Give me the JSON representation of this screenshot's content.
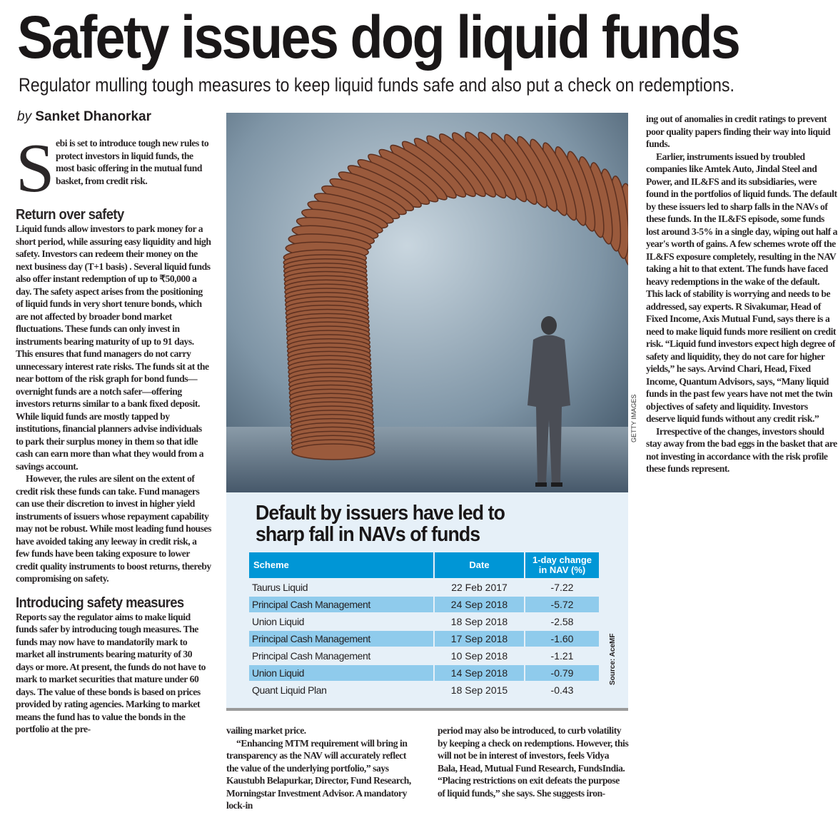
{
  "headline": "Safety issues dog liquid funds",
  "deck": "Regulator mulling tough measures to keep liquid funds safe and also put a check on redemptions.",
  "byline": {
    "prefix": "by",
    "author": "Sanket Dhanorkar"
  },
  "photo_credit": "GETTY IMAGES",
  "article": {
    "dropcap": "S",
    "intro": "ebi is set to introduce tough new rules to protect investors in liquid funds, the most basic offering in the mutual fund basket, from credit risk.",
    "section1_heading": "Return over safety",
    "section1_p1": "Liquid funds allow investors to park money for a short period, while assuring easy liquidity and high safety. Investors can redeem their money on the next business day (T+1 basis) . Several liquid funds also offer instant redemption of up to ₹50,000 a day. The safety aspect arises from the positioning of liquid funds in very short tenure bonds, which are not affected by broader bond market fluctuations. These funds can only invest in instruments bearing maturity of up to 91 days. This ensures that fund managers do not carry unnecessary interest rate risks. The funds sit at the near bottom of the risk graph for bond funds—overnight funds are a notch safer—offering investors returns similar to a bank fixed deposit. While liquid funds are mostly tapped by institutions, financial planners advise individuals to park their surplus money in them so that idle cash can earn more than what they would from a savings account.",
    "section1_p2": "However, the rules are silent on the extent of credit risk these funds can take. Fund managers can use their discretion to invest in higher yield instruments of issuers whose repayment capability may not be robust. While most leading fund houses have avoided taking any leeway in credit risk, a few funds have been taking exposure to lower credit quality instruments to boost returns, thereby compromising on safety.",
    "section2_heading": "Introducing safety measures",
    "section2_p1_part1": "Reports say the regulator aims to make liquid funds safer by introducing tough measures. The funds may now have to mandatorily mark to market all instruments bearing maturity of 30 days or more. At present, the funds do not have to mark to market securities that mature under 60 days. The value of these bonds is based on prices provided by rating agencies. Marking to market means the fund has to value the bonds in the portfolio at the pre-",
    "section2_p1_part2": "vailing market price.",
    "section2_p2": "“Enhancing MTM requirement will bring in transparency as the NAV will accurately reflect the value of the underlying portfolio,” says Kaustubh Belapurkar, Director, Fund Research, Morningstar Investment Advisor. A mandatory lock-in",
    "section2_p2_cont": "period may also be introduced, to curb volatility by keeping a check on redemptions. However, this will not be in interest of investors, feels Vidya Bala, Head, Mutual Fund Research, FundsIndia. “Placing restrictions on exit defeats the purpose of liquid funds,” she says. She suggests iron-",
    "right_p0": "ing out of anomalies in credit ratings to prevent poor quality papers finding their way into liquid funds.",
    "right_p1": "Earlier, instruments issued by troubled companies like Amtek Auto, Jindal Steel and Power, and IL&FS and its subsidiaries, were found in the portfolios of liquid funds. The default by these issuers led to sharp falls in the NAVs of these funds. In the IL&FS episode, some funds lost around 3-5% in a single day, wiping out half a year's worth of gains. A few schemes wrote off the IL&FS exposure completely, resulting in the NAV taking a hit to that extent. The funds have faced heavy redemptions in the wake of the default. This lack of stability is worrying and needs to be addressed, say experts. R Sivakumar, Head of Fixed Income, Axis Mutual Fund, says there is a need to make liquid funds more resilient on credit risk. “Liquid fund investors expect high degree of safety and liquidity, they do not care for higher yields,” he says. Arvind Chari, Head, Fixed Income, Quantum Advisors, says, “Many liquid funds in the past few years have not met the twin objectives of safety and liquidity. Investors deserve liquid funds without any credit risk.”",
    "right_p2": "Irrespective of the changes, investors should stay away from the bad eggs in the basket that are not investing in accordance with the risk profile these funds represent."
  },
  "table_box": {
    "title_line1": "Default by issuers have led to",
    "title_line2": "sharp fall in NAVs of funds",
    "headers": {
      "scheme": "Scheme",
      "date": "Date",
      "change_line1": "1-day change",
      "change_line2": "in NAV (%)"
    },
    "rows": [
      {
        "scheme": "Taurus Liquid",
        "date": "22 Feb 2017",
        "change": "-7.22"
      },
      {
        "scheme": "Principal Cash Management",
        "date": "24 Sep 2018",
        "change": "-5.72"
      },
      {
        "scheme": "Union Liquid",
        "date": "18 Sep 2018",
        "change": "-2.58"
      },
      {
        "scheme": "Principal Cash Management",
        "date": "17 Sep 2018",
        "change": "-1.60"
      },
      {
        "scheme": "Principal Cash Management",
        "date": "10 Sep 2018",
        "change": "-1.21"
      },
      {
        "scheme": "Union Liquid",
        "date": "14 Sep 2018",
        "change": "-0.79"
      },
      {
        "scheme": "Quant Liquid Plan",
        "date": "18 Sep 2015",
        "change": "-0.43"
      }
    ],
    "source": "Source: AceMF",
    "colors": {
      "header": "#0096d6",
      "alt_row": "#8fcbec",
      "background": "#e6f0f8"
    }
  }
}
